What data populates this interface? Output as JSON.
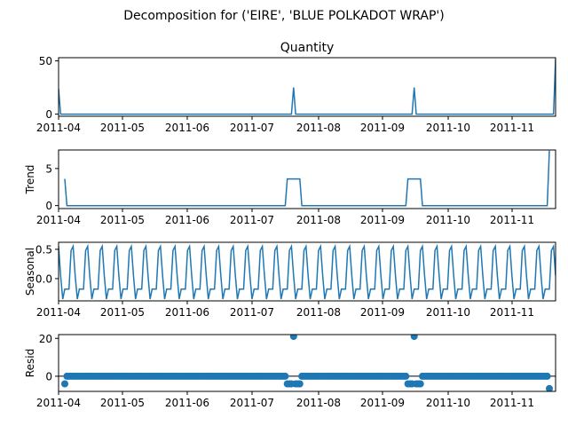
{
  "figure": {
    "title": "Decomposition for ('EIRE', 'BLUE POLKADOT WRAP')"
  },
  "colors": {
    "line": "#1f77b4",
    "axis": "#000000",
    "zero_line": "#000000"
  },
  "chart_data": [
    {
      "type": "line",
      "title": "Quantity",
      "ylabel": "",
      "x_tick_labels": [
        "2011-04",
        "2011-05",
        "2011-06",
        "2011-07",
        "2011-08",
        "2011-09",
        "2011-10",
        "2011-11"
      ],
      "y_tick_labels": [
        "0",
        "50"
      ],
      "ylim": [
        -2,
        53
      ],
      "xlim": [
        0,
        239
      ],
      "series": [
        {
          "values_description": "mostly 0 with spikes",
          "points": [
            [
              0,
              24
            ],
            [
              1,
              0
            ],
            [
              112,
              0
            ],
            [
              113,
              25
            ],
            [
              114,
              0
            ],
            [
              170,
              0
            ],
            [
              171,
              25
            ],
            [
              172,
              0
            ],
            [
              238,
              0
            ],
            [
              239,
              52
            ]
          ]
        }
      ]
    },
    {
      "type": "line",
      "title": "",
      "ylabel": "Trend",
      "x_tick_labels": [
        "2011-04",
        "2011-05",
        "2011-06",
        "2011-07",
        "2011-08",
        "2011-09",
        "2011-10",
        "2011-11"
      ],
      "y_tick_labels": [
        "0",
        "5"
      ],
      "ylim": [
        -0.4,
        7.5
      ],
      "xlim": [
        0,
        239
      ],
      "series": [
        {
          "points": [
            [
              3,
              3.6
            ],
            [
              4,
              0
            ],
            [
              109,
              0
            ],
            [
              110,
              3.6
            ],
            [
              116,
              3.6
            ],
            [
              117,
              0
            ],
            [
              167,
              0
            ],
            [
              168,
              3.6
            ],
            [
              174,
              3.6
            ],
            [
              175,
              0
            ],
            [
              235,
              0
            ],
            [
              236,
              7.4
            ]
          ]
        }
      ]
    },
    {
      "type": "line",
      "title": "",
      "ylabel": "Seasonal",
      "x_tick_labels": [
        "2011-04",
        "2011-05",
        "2011-06",
        "2011-07",
        "2011-08",
        "2011-09",
        "2011-10",
        "2011-11"
      ],
      "y_tick_labels": [
        "0.0",
        "0.5"
      ],
      "ylim": [
        -0.38,
        0.62
      ],
      "xlim": [
        0,
        239
      ],
      "period": 7,
      "pattern": [
        0.55,
        0.05,
        -0.35,
        -0.18,
        -0.18,
        -0.18,
        0.48
      ]
    },
    {
      "type": "scatter",
      "title": "",
      "ylabel": "Resid",
      "x_tick_labels": [
        "2011-04",
        "2011-05",
        "2011-06",
        "2011-07",
        "2011-08",
        "2011-09",
        "2011-10",
        "2011-11"
      ],
      "y_tick_labels": [
        "0",
        "20"
      ],
      "ylim": [
        -8,
        22
      ],
      "xlim": [
        0,
        239
      ],
      "baseline": 0,
      "range_start": 3,
      "range_end": 236,
      "outliers": [
        [
          3,
          -4
        ],
        [
          110,
          -4
        ],
        [
          111,
          -4
        ],
        [
          112,
          -4
        ],
        [
          113,
          21
        ],
        [
          114,
          -4
        ],
        [
          115,
          -4
        ],
        [
          116,
          -4
        ],
        [
          168,
          -4
        ],
        [
          169,
          -4
        ],
        [
          170,
          -4
        ],
        [
          171,
          21
        ],
        [
          172,
          -4
        ],
        [
          173,
          -4
        ],
        [
          174,
          -4
        ],
        [
          236,
          -6.5
        ]
      ]
    }
  ]
}
